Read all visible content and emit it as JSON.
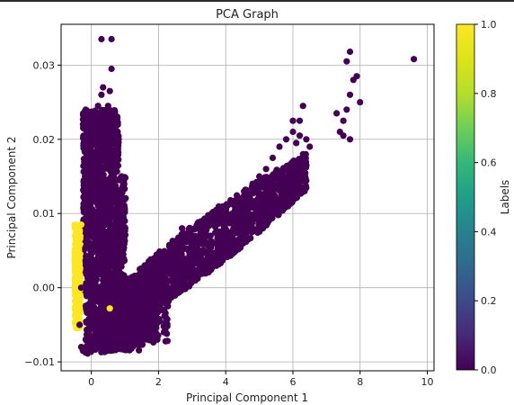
{
  "chart_data": {
    "type": "scatter",
    "title": "PCA Graph",
    "xlabel": "Principal Component 1",
    "ylabel": "Principal Component 2",
    "xlim": [
      -0.9,
      10.2
    ],
    "ylim": [
      -0.0112,
      0.0355
    ],
    "x_ticks": [
      0,
      2,
      4,
      6,
      8,
      10
    ],
    "y_ticks": [
      -0.01,
      0.0,
      0.01,
      0.02,
      0.03
    ],
    "x_tick_labels": [
      "0",
      "2",
      "4",
      "6",
      "8",
      "10"
    ],
    "y_tick_labels": [
      "−0.01",
      "0.00",
      "0.01",
      "0.02",
      "0.03"
    ],
    "grid": true,
    "colormap": "viridis",
    "colorbar": {
      "label": "Labels",
      "range": [
        0.0,
        1.0
      ],
      "ticks": [
        0.0,
        0.2,
        0.4,
        0.6,
        0.8,
        1.0
      ],
      "tick_labels": [
        "0.0",
        "0.2",
        "0.4",
        "0.6",
        "0.8",
        "1.0"
      ]
    },
    "colors": {
      "label_0": "#440154",
      "label_1": "#fde725"
    },
    "series": [
      {
        "label_value": 0,
        "color": "#440154",
        "points": [
          [
            -0.3,
            0.0
          ],
          [
            -0.35,
            -0.005
          ],
          [
            -0.3,
            -0.008
          ],
          [
            -0.25,
            -0.0085
          ],
          [
            0.0,
            0.005
          ],
          [
            -0.1,
            0.013
          ],
          [
            0.1,
            0.02
          ],
          [
            0.2,
            0.0245
          ],
          [
            0.3,
            0.026
          ],
          [
            0.35,
            0.027
          ],
          [
            0.5,
            0.0245
          ],
          [
            0.4,
            0.023
          ],
          [
            0.6,
            0.021
          ],
          [
            0.8,
            0.0195
          ],
          [
            0.9,
            0.015
          ],
          [
            0.5,
            0.01
          ],
          [
            0.3,
            0.0
          ],
          [
            0.2,
            -0.005
          ],
          [
            0.5,
            -0.0085
          ],
          [
            1.0,
            -0.006
          ],
          [
            0.8,
            -0.003
          ],
          [
            1.2,
            -0.002
          ],
          [
            1.5,
            0.0
          ],
          [
            1.8,
            -0.001
          ],
          [
            2.0,
            0.002
          ],
          [
            2.2,
            0.004
          ],
          [
            2.5,
            0.003
          ],
          [
            2.7,
            0.006
          ],
          [
            3.0,
            0.007
          ],
          [
            3.2,
            0.005
          ],
          [
            3.4,
            0.009
          ],
          [
            3.6,
            0.0085
          ],
          [
            3.8,
            0.0095
          ],
          [
            4.0,
            0.011
          ],
          [
            4.2,
            0.01
          ],
          [
            4.4,
            0.012
          ],
          [
            4.6,
            0.013
          ],
          [
            4.8,
            0.014
          ],
          [
            5.0,
            0.015
          ],
          [
            5.2,
            0.016
          ],
          [
            5.4,
            0.0175
          ],
          [
            5.6,
            0.019
          ],
          [
            5.8,
            0.02
          ],
          [
            6.0,
            0.021
          ],
          [
            6.2,
            0.0205
          ],
          [
            6.4,
            0.02
          ],
          [
            6.5,
            0.019
          ],
          [
            6.3,
            0.018
          ],
          [
            6.1,
            0.0195
          ],
          [
            6.0,
            0.017
          ],
          [
            5.9,
            0.0165
          ],
          [
            6.2,
            0.0225
          ],
          [
            6.0,
            0.0225
          ],
          [
            6.3,
            0.0245
          ],
          [
            5.0,
            0.0115
          ],
          [
            5.3,
            0.0095
          ],
          [
            5.5,
            0.012
          ],
          [
            4.5,
            0.0095
          ],
          [
            6.2,
            0.0135
          ],
          [
            6.4,
            0.0165
          ],
          [
            0.3,
            0.0335
          ],
          [
            0.6,
            0.0335
          ],
          [
            0.6,
            0.0295
          ],
          [
            0.55,
            0.0265
          ],
          [
            0.7,
            0.0185
          ],
          [
            0.55,
            0.0195
          ],
          [
            7.3,
            0.0235
          ],
          [
            7.5,
            0.0225
          ],
          [
            7.4,
            0.021
          ],
          [
            7.6,
            0.024
          ],
          [
            7.7,
            0.026
          ],
          [
            7.8,
            0.028
          ],
          [
            7.6,
            0.0305
          ],
          [
            7.7,
            0.0318
          ],
          [
            7.9,
            0.0285
          ],
          [
            8.0,
            0.025
          ],
          [
            7.7,
            0.02
          ],
          [
            7.5,
            0.0205
          ],
          [
            9.6,
            0.0308
          ],
          [
            2.7,
            0.008
          ],
          [
            1.6,
            0.003
          ],
          [
            3.3,
            0.0075
          ]
        ],
        "clusters": [
          {
            "x": [
              -0.2,
              0.9
            ],
            "y": [
              -0.0085,
              0.024
            ],
            "shape": "vertical-band"
          },
          {
            "x": [
              0.3,
              6.6
            ],
            "y": [
              -0.007,
              0.021
            ],
            "shape": "diagonal-band"
          }
        ]
      },
      {
        "label_value": 1,
        "color": "#fde725",
        "points": [
          [
            -0.45,
            0.006
          ],
          [
            -0.45,
            0.003
          ],
          [
            -0.42,
            0.0
          ],
          [
            -0.45,
            -0.003
          ],
          [
            -0.4,
            -0.005
          ],
          [
            -0.35,
            0.007
          ],
          [
            -0.3,
            0.0085
          ],
          [
            -0.33,
            -0.0015
          ],
          [
            -0.42,
            0.0055
          ],
          [
            -0.38,
            0.0025
          ],
          [
            0.55,
            -0.0028
          ]
        ],
        "clusters": [
          {
            "x": [
              -0.5,
              -0.3
            ],
            "y": [
              -0.0055,
              0.0088
            ],
            "shape": "thin-vertical-band"
          }
        ]
      }
    ]
  }
}
